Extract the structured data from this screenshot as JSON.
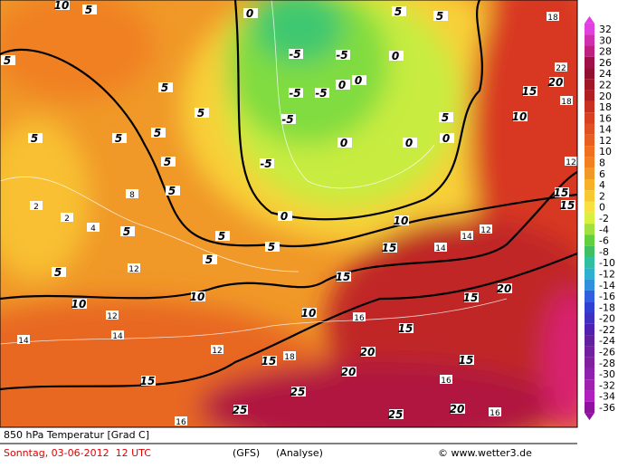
{
  "map": {
    "legend": {
      "levels": [
        32,
        30,
        28,
        26,
        24,
        22,
        20,
        18,
        16,
        14,
        12,
        10,
        8,
        6,
        4,
        2,
        0,
        -2,
        -4,
        -6,
        -8,
        -10,
        -12,
        -14,
        -16,
        -18,
        -20,
        -22,
        -24,
        -26,
        -28,
        -30,
        -32,
        -34,
        -36
      ],
      "colors": [
        "#e040e0",
        "#d030b0",
        "#c02080",
        "#a01048",
        "#901030",
        "#a01828",
        "#b02020",
        "#c83020",
        "#d84020",
        "#e05020",
        "#e86020",
        "#f07020",
        "#f08020",
        "#f09828",
        "#f8b028",
        "#f8c830",
        "#f8e040",
        "#d8f040",
        "#a0e040",
        "#60d040",
        "#40c060",
        "#30c0a0",
        "#30b0d0",
        "#3090e0",
        "#3060e0",
        "#3040d0",
        "#4030c0",
        "#5020b0",
        "#6020a0",
        "#7020a0",
        "#8020a0",
        "#9020b0",
        "#a020b0",
        "#b020c0",
        "#9010a0"
      ]
    },
    "contour_labels": [
      10,
      5,
      5,
      5,
      5,
      5,
      10,
      10,
      15,
      15,
      25,
      25,
      25,
      20,
      20,
      20,
      20,
      20,
      15,
      10,
      5,
      0,
      0,
      0,
      0,
      0,
      0,
      0,
      0,
      5,
      5,
      -5,
      -5,
      -5,
      -5,
      -5,
      -5,
      10,
      15,
      15,
      15,
      15,
      15,
      10,
      5,
      5,
      5,
      5,
      5,
      5,
      5,
      5,
      5,
      15,
      15
    ],
    "isotherm_labels": [
      2,
      2,
      4,
      8,
      12,
      12,
      14,
      14,
      16,
      18,
      16,
      16,
      16,
      18,
      18,
      14,
      12,
      14,
      12,
      22,
      12
    ],
    "footer": {
      "title": "850 hPa Temperatur [Grad C]",
      "date": "Sonntag, 03-06-2012  12 UTC",
      "model": "(GFS)",
      "run": "(Analyse)",
      "source": "© www.wetter3.de"
    }
  }
}
